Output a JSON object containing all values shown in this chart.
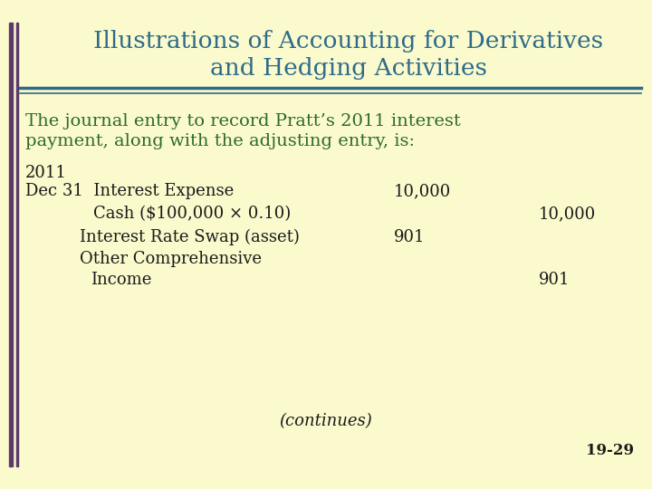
{
  "bg_color": "#FAFACD",
  "title_line1": "Illustrations of Accounting for Derivatives",
  "title_line2": "and Hedging Activities",
  "title_color": "#2E6B8A",
  "left_bar_color": "#5B3A6B",
  "rule_color": "#2E6B8A",
  "body_color": "#2D6A2D",
  "black_color": "#1A1A1A",
  "subtitle_line1": "The journal entry to record Pratt’s 2011 interest",
  "subtitle_line2": "payment, along with the adjusting entry, is:",
  "year_label": "2011",
  "journal_entries": [
    {
      "label": "Dec 31  Interest Expense",
      "debit": "10,000",
      "credit": "",
      "indent": 0
    },
    {
      "label": "Cash ($100,000 × 0.10)",
      "debit": "",
      "credit": "10,000",
      "indent": 1
    },
    {
      "label": "Interest Rate Swap (asset)",
      "debit": "901",
      "credit": "",
      "indent": 1
    },
    {
      "label": "Other Comprehensive",
      "debit": "",
      "credit": "",
      "indent": 1
    },
    {
      "label": "Income",
      "debit": "",
      "credit": "901",
      "indent": 2
    }
  ],
  "continues_label": "(continues)",
  "page_number": "19-29",
  "title_fontsize": 19,
  "body_fontsize": 14,
  "journal_fontsize": 13,
  "small_fontsize": 12
}
